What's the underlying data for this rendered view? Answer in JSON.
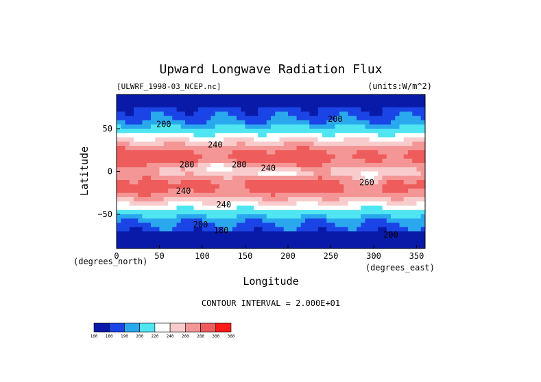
{
  "chart_data": {
    "type": "heatmap",
    "title": "Upward Longwave Radiation Flux",
    "subtitle_left": "[ULWRF_1998-03_NCEP.nc]",
    "subtitle_right": "(units:W/m^2)",
    "xlabel": "Longitude",
    "ylabel": "Latitude",
    "x_unit_label": "(degrees_east)",
    "y_unit_label": "(degrees_north)",
    "xlim": [
      0,
      360
    ],
    "ylim": [
      -90,
      90
    ],
    "x_ticks": [
      0,
      50,
      100,
      150,
      200,
      250,
      300,
      350
    ],
    "y_ticks": [
      -50,
      0,
      50
    ],
    "x_tick_labels": [
      "0",
      "50",
      "100",
      "150",
      "200",
      "250",
      "300",
      "350"
    ],
    "y_tick_labels": [
      "−50",
      "0",
      "50"
    ],
    "contour_interval_text": "CONTOUR INTERVAL = 2.000E+01",
    "contour_labels": [
      {
        "lon": 55,
        "lat": 52,
        "text": "200"
      },
      {
        "lon": 255,
        "lat": 58,
        "text": "200"
      },
      {
        "lon": 115,
        "lat": 28,
        "text": "240"
      },
      {
        "lon": 82,
        "lat": 5,
        "text": "280"
      },
      {
        "lon": 143,
        "lat": 5,
        "text": "280"
      },
      {
        "lon": 177,
        "lat": 1,
        "text": "240"
      },
      {
        "lon": 292,
        "lat": -16,
        "text": "260"
      },
      {
        "lon": 78,
        "lat": -26,
        "text": "240"
      },
      {
        "lon": 125,
        "lat": -42,
        "text": "240"
      },
      {
        "lon": 98,
        "lat": -65,
        "text": "200"
      },
      {
        "lon": 122,
        "lat": -72,
        "text": "180"
      },
      {
        "lon": 320,
        "lat": -77,
        "text": "200"
      }
    ],
    "colorbar": {
      "levels": [
        "160",
        "180",
        "190",
        "200",
        "220",
        "240",
        "260",
        "280",
        "300",
        "360"
      ],
      "colors": [
        "#0a1aa8",
        "#1a44e6",
        "#2aa8ee",
        "#4fe6f2",
        "#ffffff",
        "#f8cccc",
        "#f49696",
        "#ee5c5c",
        "#ff1a1a"
      ]
    }
  }
}
